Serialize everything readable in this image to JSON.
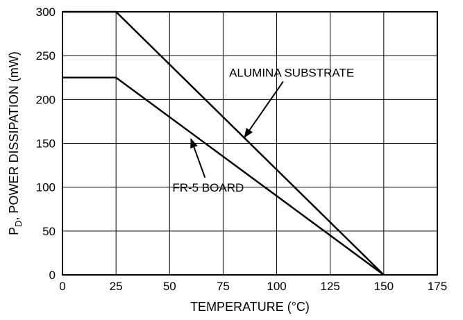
{
  "chart_data": {
    "type": "line",
    "xlabel": "TEMPERATURE (°C)",
    "ylabel": {
      "prefix": "P",
      "subscript": "D",
      "rest": ", POWER DISSIPATION (mW)"
    },
    "xlim": [
      0,
      175
    ],
    "ylim": [
      0,
      300
    ],
    "xticks": [
      0,
      25,
      50,
      75,
      100,
      125,
      150,
      175
    ],
    "yticks": [
      0,
      50,
      100,
      150,
      200,
      250,
      300
    ],
    "grid": true,
    "series": [
      {
        "name": "ALUMINA SUBSTRATE",
        "x": [
          0,
          25,
          150
        ],
        "y": [
          300,
          300,
          0
        ]
      },
      {
        "name": "FR-5 BOARD",
        "x": [
          0,
          25,
          150
        ],
        "y": [
          225,
          225,
          0
        ]
      }
    ],
    "annotations": [
      {
        "text": "ALUMINA SUBSTRATE",
        "series": 0,
        "label_at": [
          107,
          226
        ],
        "arrow_to": [
          85,
          157
        ]
      },
      {
        "text": "FR-5 BOARD",
        "series": 1,
        "label_at": [
          68,
          95
        ],
        "arrow_to": [
          60,
          155
        ]
      }
    ]
  }
}
